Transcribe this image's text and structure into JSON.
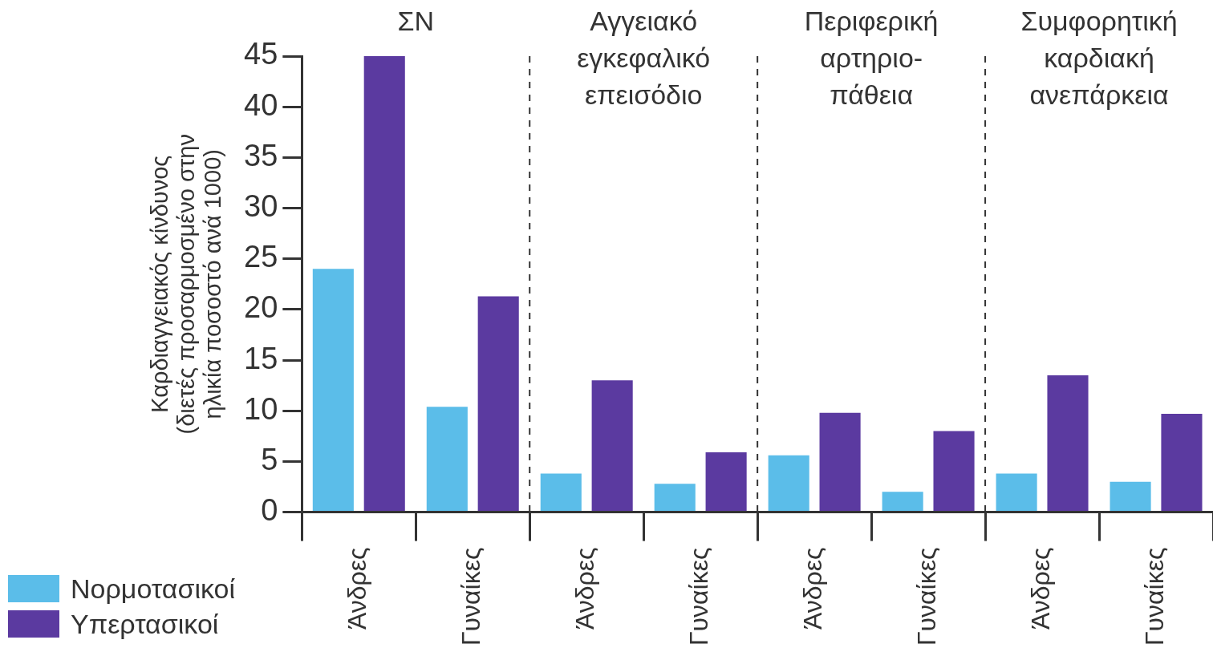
{
  "chart_data": {
    "type": "bar",
    "ylabel": "Καρδιαγγειακός κίνδυνος\n(διετές προσαρμοσμένο στην\nηλικία ποσοστό ανά 1000)",
    "categories": [
      "Άνδρες",
      "Γυναίκες",
      "Άνδρες",
      "Γυναίκες",
      "Άνδρες",
      "Γυναίκες",
      "Άνδρες",
      "Γυναίκες"
    ],
    "series": [
      {
        "name": "Νορμοτασικοί",
        "color": "#5bbde9",
        "values": [
          24,
          10.4,
          3.8,
          2.8,
          5.6,
          2,
          3.8,
          3
        ]
      },
      {
        "name": "Υπερτασικοί",
        "color": "#5b3aa0",
        "values": [
          45,
          21.3,
          13,
          5.9,
          9.8,
          8,
          13.5,
          9.7
        ]
      }
    ],
    "annotations": [
      "ΣΝ",
      "Αγγειακό\nεγκεφαλικό\nεπεισόδιο",
      "Περιφερική\nαρτηριο-\nπάθεια",
      "Συμφορητική\nκαρδιακή\nανεπάρκεια"
    ],
    "ylim": [
      0,
      45
    ],
    "yticks": [
      0,
      5,
      10,
      15,
      20,
      25,
      30,
      35,
      40,
      45
    ],
    "grid": false,
    "legend": "bottom left"
  }
}
